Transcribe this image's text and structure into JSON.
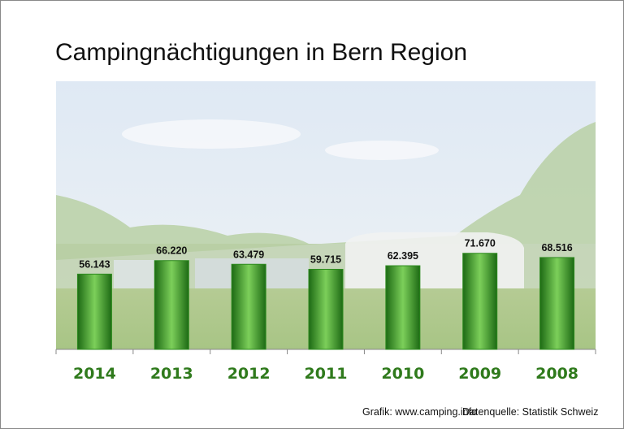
{
  "chart_data": {
    "type": "bar",
    "title": "Campingnächtigungen in Bern Region",
    "categories": [
      "2014",
      "2013",
      "2012",
      "2011",
      "2010",
      "2009",
      "2008"
    ],
    "values": [
      56143,
      66220,
      63479,
      59715,
      62395,
      71670,
      68516
    ],
    "value_labels": [
      "56.143",
      "66.220",
      "63.479",
      "59.715",
      "62.395",
      "71.670",
      "68.516"
    ],
    "ylim": [
      0,
      200000
    ],
    "color": "#2e8b1f",
    "footer": [
      "Grafik: www.camping.info",
      "Datenquelle: Statistik Schweiz"
    ]
  }
}
